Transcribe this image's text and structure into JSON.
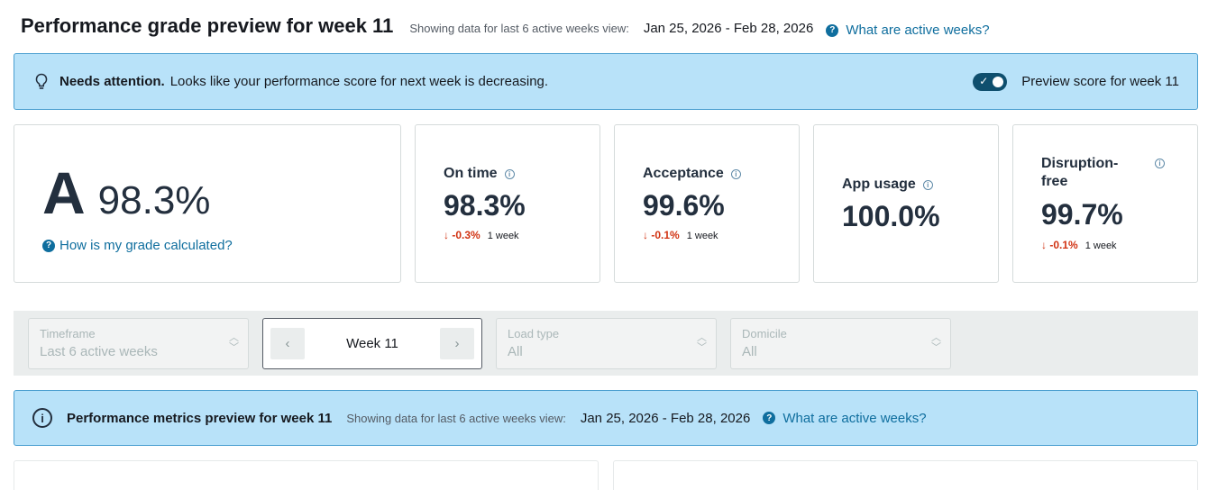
{
  "header": {
    "title": "Performance grade preview for week 11",
    "range_caption": "Showing data for last 6 active weeks view:",
    "range_dates": "Jan 25, 2026 - Feb 28, 2026",
    "help_link": "What are active weeks?"
  },
  "alert": {
    "icon": "lightbulb-icon",
    "strong": "Needs attention.",
    "message": "Looks like your performance score for next week is decreasing.",
    "toggle_on": true,
    "toggle_label": "Preview score for week 11"
  },
  "grade": {
    "letter": "A",
    "score": "98.3%",
    "link": "How is my grade calculated?"
  },
  "metrics": [
    {
      "title": "On time",
      "value": "98.3%",
      "change": "-0.3%",
      "period": "1 week"
    },
    {
      "title": "Acceptance",
      "value": "99.6%",
      "change": "-0.1%",
      "period": "1 week"
    },
    {
      "title": "App usage",
      "value": "100.0%"
    },
    {
      "title": "Disruption-free",
      "value": "99.7%",
      "change": "-0.1%",
      "period": "1 week"
    }
  ],
  "filters": {
    "timeframe": {
      "label": "Timeframe",
      "value": "Last 6 active weeks"
    },
    "week": {
      "value": "Week 11"
    },
    "load_type": {
      "label": "Load type",
      "value": "All"
    },
    "domicile": {
      "label": "Domicile",
      "value": "All"
    }
  },
  "banner": {
    "title": "Performance metrics preview for week 11",
    "caption": "Showing data for last 6 active weeks view:",
    "dates": "Jan 25, 2026 - Feb 28, 2026",
    "help_link": "What are active weeks?"
  },
  "colors": {
    "alert_bg": "#b8e2f9",
    "link": "#0f6e9e",
    "negative": "#d13212",
    "toggle": "#0f4f6e"
  }
}
